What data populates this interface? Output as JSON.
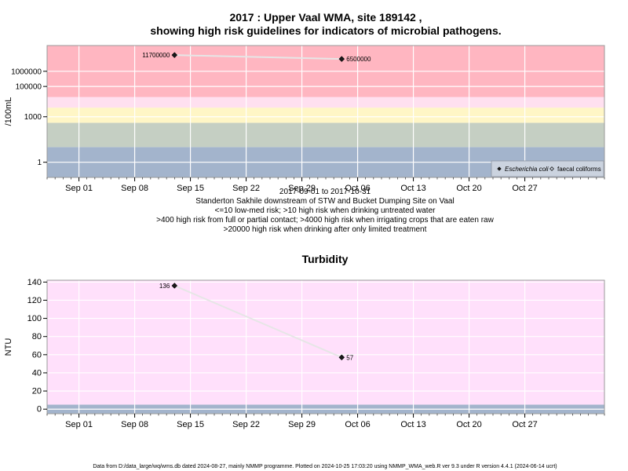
{
  "chart_data": [
    {
      "type": "line",
      "title": "2017 : Upper Vaal WMA, site 189142 ,",
      "title2": "showing high risk guidelines for indicators of microbial pathogens.",
      "ylabel": "/100mL",
      "yscale": "log",
      "ylim": [
        0.1,
        50000000
      ],
      "yticks": [
        1,
        1000,
        100000,
        1000000
      ],
      "ytick_labels": [
        "1",
        "1000",
        "100000",
        "1000000"
      ],
      "xlim": [
        "2017-08-28",
        "2017-11-06"
      ],
      "xticks": [
        "2017-09-01",
        "2017-09-08",
        "2017-09-15",
        "2017-09-22",
        "2017-09-29",
        "2017-10-06",
        "2017-10-13",
        "2017-10-20",
        "2017-10-27"
      ],
      "xtick_labels": [
        "Sep 01",
        "Sep 08",
        "Sep 15",
        "Sep 22",
        "Sep 29",
        "Oct 06",
        "Oct 13",
        "Oct 20",
        "Oct 27"
      ],
      "bands": [
        {
          "from": 0.1,
          "to": 10,
          "color": "#a3b4cc"
        },
        {
          "from": 10,
          "to": 400,
          "color": "#c5cfc3"
        },
        {
          "from": 400,
          "to": 4000,
          "color": "#fff6c6"
        },
        {
          "from": 4000,
          "to": 20000,
          "color": "#ffe0f0"
        },
        {
          "from": 20000,
          "to": 50000000,
          "color": "#ffb6c1"
        }
      ],
      "series": [
        {
          "name": "Escherichia coli",
          "marker": "filled-diamond",
          "x": [
            "2017-09-13",
            "2017-10-04"
          ],
          "values": [
            11700000,
            6500000
          ],
          "labels": [
            "11700000",
            "6500000"
          ]
        }
      ],
      "legend": [
        "Escherichia coli",
        "faecal coliforms"
      ],
      "legend_position": "bottom-right",
      "caption": [
        "2017-09-01 to 2017-10-31",
        "Standerton Sakhile downstream of STW and Bucket Dumping Site on Vaal",
        "<=10 low-med risk; >10 high risk when drinking untreated water",
        ">400 high risk from full or partial contact; >4000 high risk when irrigating crops that are eaten raw",
        ">20000 high risk when drinking after only limited treatment"
      ]
    },
    {
      "type": "line",
      "title": "Turbidity",
      "ylabel": "NTU",
      "ylim": [
        -5,
        142
      ],
      "yticks": [
        0,
        20,
        40,
        60,
        80,
        100,
        120,
        140
      ],
      "ytick_labels": [
        "0",
        "20",
        "40",
        "60",
        "80",
        "100",
        "120",
        "140"
      ],
      "xlim": [
        "2017-08-28",
        "2017-11-06"
      ],
      "xticks": [
        "2017-09-01",
        "2017-09-08",
        "2017-09-15",
        "2017-09-22",
        "2017-09-29",
        "2017-10-06",
        "2017-10-13",
        "2017-10-20",
        "2017-10-27"
      ],
      "xtick_labels": [
        "Sep 01",
        "Sep 08",
        "Sep 15",
        "Sep 22",
        "Sep 29",
        "Oct 06",
        "Oct 13",
        "Oct 20",
        "Oct 27"
      ],
      "bands": [
        {
          "from": -5,
          "to": 5,
          "color": "#a3b4cc"
        },
        {
          "from": 5,
          "to": 142,
          "color": "#ffe0fb"
        }
      ],
      "series": [
        {
          "marker": "filled-diamond",
          "x": [
            "2017-09-13",
            "2017-10-04"
          ],
          "values": [
            136,
            57
          ],
          "labels": [
            "136",
            "57"
          ]
        }
      ]
    }
  ],
  "footer": "Data from D:/data_large/wq/wms.db dated 2024-08-27, mainly NMMP programme. Plotted on 2024-10-25 17:03:20 using NMMP_WMA_web.R ver 9.3 under R version 4.4.1 (2024-06-14 ucrt)"
}
